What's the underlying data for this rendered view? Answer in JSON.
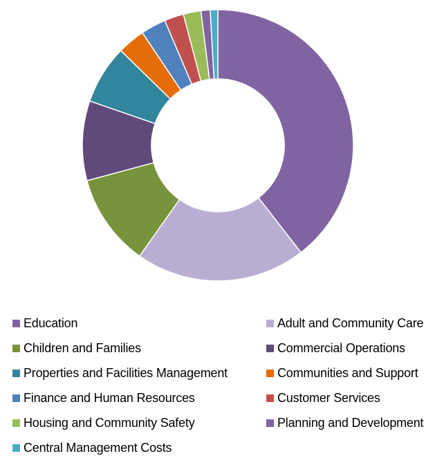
{
  "chart_data": {
    "type": "pie",
    "variant": "donut",
    "title": "",
    "legend_position": "bottom",
    "categories": [
      "Education",
      "Adult and Community Care",
      "Children and Families",
      "Commercial Operations",
      "Properties and Facilities Management",
      "Communities and Support",
      "Finance and Human Resources",
      "Customer Services",
      "Housing and Community Safety",
      "Planning and Development",
      "Central Management Costs"
    ],
    "values": [
      39.5,
      20.3,
      11.0,
      9.5,
      7.0,
      3.3,
      3.0,
      2.3,
      2.1,
      1.1,
      0.9
    ],
    "colors": [
      "#8064A2",
      "#B9AED1",
      "#77933C",
      "#604A7B",
      "#31859C",
      "#E46C0A",
      "#4F81BD",
      "#C0504D",
      "#9BBB59",
      "#8064A2",
      "#4BACC6"
    ]
  }
}
